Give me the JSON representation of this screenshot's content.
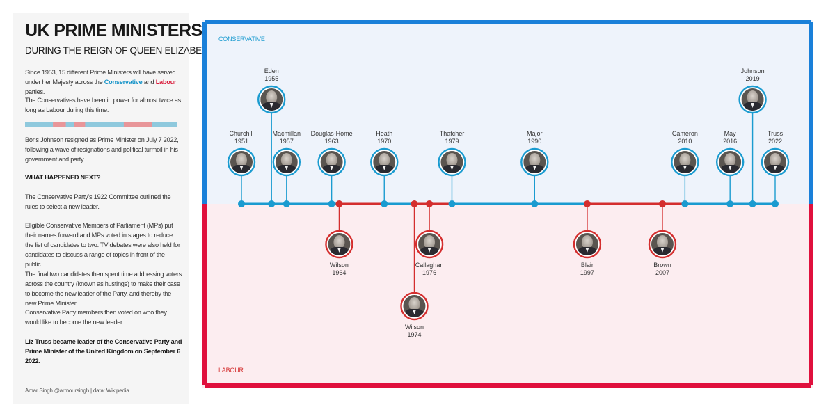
{
  "title": "UK PRIME MINISTERS",
  "subtitle": "DURING THE REIGN OF QUEEN ELIZABETH II",
  "intro": {
    "line1": "Since 1953, 15 different Prime Ministers will have served under her Majesty across the ",
    "conservative": "Conservative",
    "and": " and ",
    "labour": "Labour",
    "end": " parties."
  },
  "paragraphs": {
    "p2": "The Conservatives have been in power for almost twice as long as Labour during this time.",
    "p3": "Boris Johnson resigned as Prime Minister on July 7 2022, following a wave of resignations and political turmoil in his government and party.",
    "p4": "WHAT HAPPENED NEXT?",
    "p5": "The Conservative Party's 1922 Committee outlined the rules to select a new leader.",
    "p6": "Eligible Conservative Members of Parliament (MPs) put their names forward and MPs voted in stages to reduce the list of candidates to two. TV debates were also held for candidates to discuss a range of topics in front of the public.",
    "p7": "The final two candidates then spent time addressing voters across the country (known as hustings) to make their case to become the new leader of the Party, and thereby the new Prime Minister.",
    "p8": "Conservative Party members then voted on who they would like to become the new leader.",
    "p9": "Liz Truss became leader of the Conservative Party and Prime Minister of the United Kingdom on September 6 2022."
  },
  "footer": "Amar Singh @armoursingh | data: Wikipedia",
  "legend": {
    "conservative": "CONSERVATIVE",
    "labour": "LABOUR"
  },
  "colors": {
    "conservative": "#1a9bd0",
    "labour": "#d42e2e",
    "frame_top": "#1a80d9",
    "frame_bottom": "#e0103d",
    "cons_bg": "#eef3fb",
    "lab_bg": "#fcedf0",
    "strip_cons": "#8fc9dd",
    "strip_lab": "#e89699"
  },
  "icons": {
    "portrait": "person-portrait-icon"
  },
  "strip_terms": [
    {
      "party": "conservative",
      "years": 13
    },
    {
      "party": "labour",
      "years": 6
    },
    {
      "party": "conservative",
      "years": 4
    },
    {
      "party": "labour",
      "years": 5
    },
    {
      "party": "conservative",
      "years": 18
    },
    {
      "party": "labour",
      "years": 13
    },
    {
      "party": "conservative",
      "years": 12
    }
  ],
  "ministers": [
    {
      "name": "Churchill",
      "year": "1951",
      "party": "conservative"
    },
    {
      "name": "Eden",
      "year": "1955",
      "party": "conservative"
    },
    {
      "name": "Macmillan",
      "year": "1957",
      "party": "conservative"
    },
    {
      "name": "Douglas-Home",
      "year": "1963",
      "party": "conservative"
    },
    {
      "name": "Wilson",
      "year": "1964",
      "party": "labour"
    },
    {
      "name": "Heath",
      "year": "1970",
      "party": "conservative"
    },
    {
      "name": "Wilson",
      "year": "1974",
      "party": "labour"
    },
    {
      "name": "Callaghan",
      "year": "1976",
      "party": "labour"
    },
    {
      "name": "Thatcher",
      "year": "1979",
      "party": "conservative"
    },
    {
      "name": "Major",
      "year": "1990",
      "party": "conservative"
    },
    {
      "name": "Blair",
      "year": "1997",
      "party": "labour"
    },
    {
      "name": "Brown",
      "year": "2007",
      "party": "labour"
    },
    {
      "name": "Cameron",
      "year": "2010",
      "party": "conservative"
    },
    {
      "name": "May",
      "year": "2016",
      "party": "conservative"
    },
    {
      "name": "Johnson",
      "year": "2019",
      "party": "conservative"
    },
    {
      "name": "Truss",
      "year": "2022",
      "party": "conservative"
    }
  ]
}
